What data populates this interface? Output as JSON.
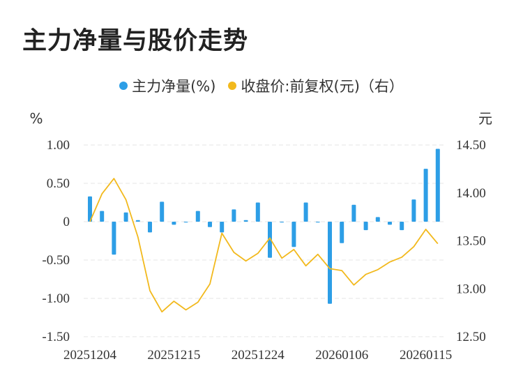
{
  "title": "主力净量与股价走势",
  "legend": {
    "items": [
      {
        "label": "主力净量(%)",
        "color": "#2d9ee6"
      },
      {
        "label": "收盘价:前复权(元)（右）",
        "color": "#f2b91d"
      }
    ]
  },
  "axes": {
    "left_unit": "%",
    "right_unit": "元"
  },
  "chart_data": {
    "type": "bar",
    "x": [
      "20251204",
      "20251205",
      "20251208",
      "20251209",
      "20251210",
      "20251211",
      "20251212",
      "20251215",
      "20251216",
      "20251217",
      "20251218",
      "20251219",
      "20251222",
      "20251223",
      "20251224",
      "20251225",
      "20251226",
      "20251229",
      "20251230",
      "20251231",
      "20260105",
      "20260106",
      "20260107",
      "20260108",
      "20260109",
      "20260112",
      "20260113",
      "20260114",
      "20260115",
      "20260116"
    ],
    "xticks": [
      "20251204",
      "20251215",
      "20251224",
      "20260106",
      "20260115"
    ],
    "series": [
      {
        "name": "主力净量(%)",
        "type": "bar",
        "axis": "left",
        "color": "#2d9ee6",
        "values": [
          0.33,
          0.14,
          -0.43,
          0.12,
          0.02,
          -0.14,
          0.26,
          -0.04,
          -0.01,
          0.14,
          -0.07,
          -0.14,
          0.16,
          0.02,
          0.25,
          -0.47,
          -0.01,
          -0.33,
          0.25,
          -0.01,
          -1.07,
          -0.28,
          0.22,
          -0.11,
          0.06,
          -0.04,
          -0.11,
          0.29,
          0.69,
          0.95
        ]
      },
      {
        "name": "收盘价:前复权(元)（右）",
        "type": "line",
        "axis": "right",
        "color": "#f2b91d",
        "values": [
          13.7,
          13.99,
          14.15,
          13.93,
          13.54,
          12.98,
          12.76,
          12.87,
          12.78,
          12.86,
          13.05,
          13.58,
          13.38,
          13.29,
          13.37,
          13.53,
          13.32,
          13.41,
          13.24,
          13.36,
          13.21,
          13.19,
          13.04,
          13.15,
          13.2,
          13.28,
          13.33,
          13.44,
          13.62,
          13.47
        ]
      }
    ],
    "y_left": {
      "min": -1.5,
      "max": 1.0,
      "ticks": [
        "1.00",
        "0.50",
        "0",
        "-0.50",
        "-1.00",
        "-1.50"
      ]
    },
    "y_right": {
      "min": 12.5,
      "max": 14.5,
      "ticks": [
        "14.50",
        "14.00",
        "13.50",
        "13.00",
        "12.50"
      ]
    },
    "grid": true
  }
}
